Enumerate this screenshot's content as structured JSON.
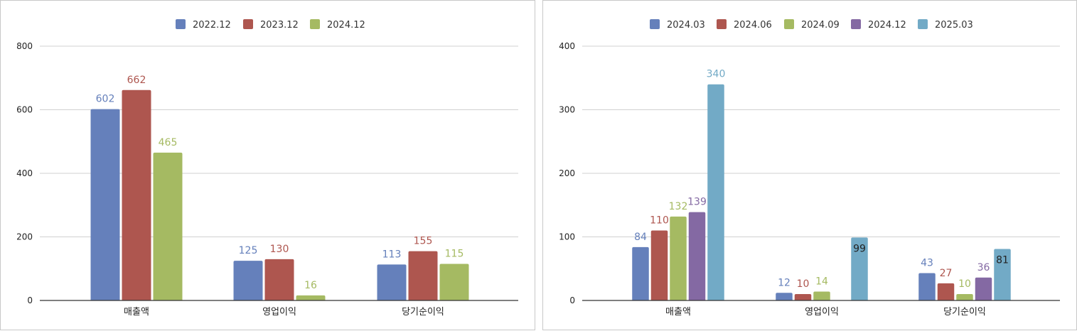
{
  "chart_data": [
    {
      "type": "bar",
      "categories": [
        "매출액",
        "영업이익",
        "당기순이익"
      ],
      "series": [
        {
          "name": "2022.12",
          "color": "#6580bb",
          "values": [
            602,
            125,
            113
          ]
        },
        {
          "name": "2023.12",
          "color": "#ae564f",
          "values": [
            662,
            130,
            155
          ]
        },
        {
          "name": "2024.12",
          "color": "#a5ba62",
          "values": [
            465,
            16,
            115
          ]
        }
      ],
      "yticks": [
        0,
        200,
        400,
        600,
        800
      ],
      "ylim": [
        0,
        800
      ],
      "grid": true,
      "legend": "top-center"
    },
    {
      "type": "bar",
      "categories": [
        "매출액",
        "영업이익",
        "당기순이익"
      ],
      "series": [
        {
          "name": "2024.03",
          "color": "#6580bb",
          "values": [
            84,
            12,
            43
          ]
        },
        {
          "name": "2024.06",
          "color": "#ae564f",
          "values": [
            110,
            10,
            27
          ]
        },
        {
          "name": "2024.09",
          "color": "#a5ba62",
          "values": [
            132,
            14,
            10
          ]
        },
        {
          "name": "2024.12",
          "color": "#8469a3",
          "values": [
            139,
            null,
            36
          ]
        },
        {
          "name": "2025.03",
          "color": "#72aac6",
          "values": [
            340,
            99,
            81
          ]
        }
      ],
      "yticks": [
        0,
        100,
        200,
        300,
        400
      ],
      "ylim": [
        0,
        400
      ],
      "grid": true,
      "legend": "top-center"
    }
  ]
}
